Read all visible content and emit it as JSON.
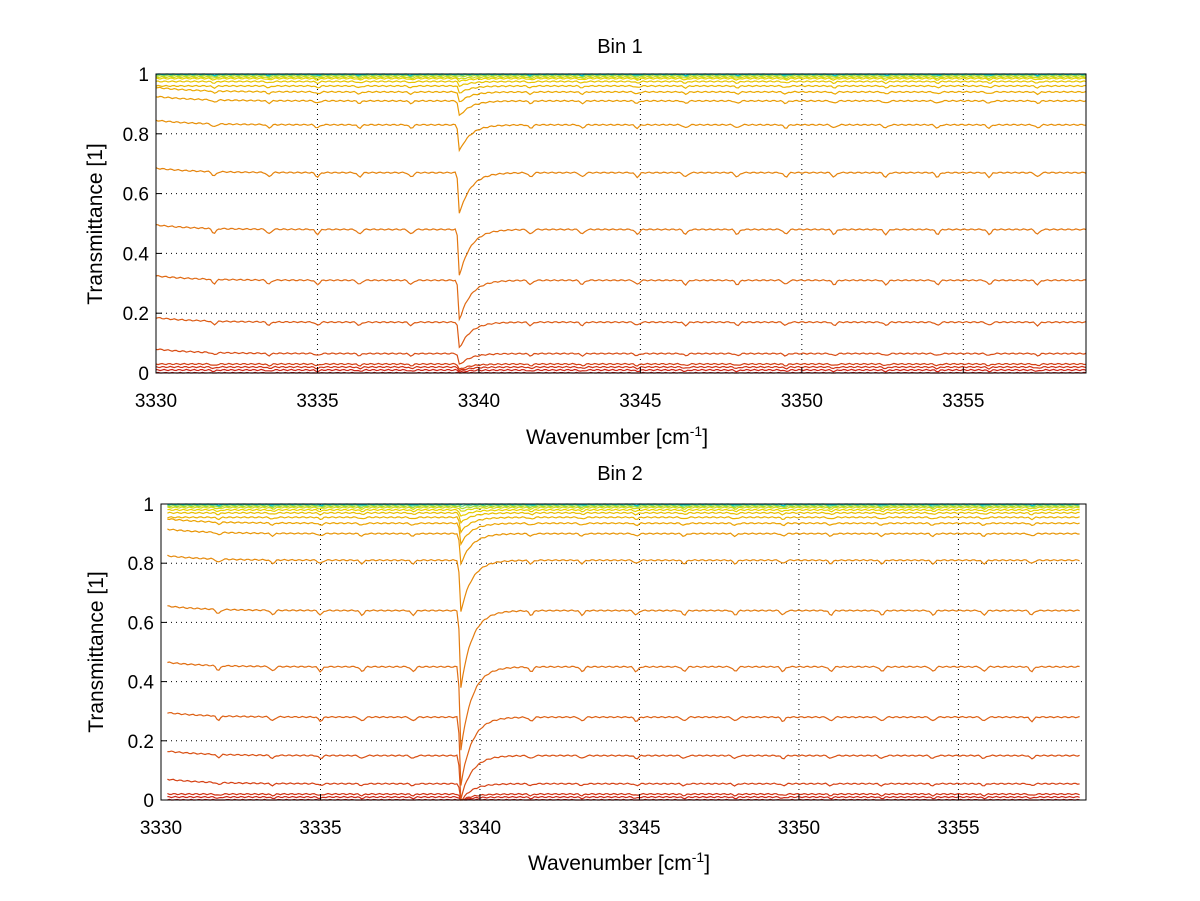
{
  "chart_data": [
    {
      "type": "line",
      "title": "Bin 1",
      "xlabel": "Wavenumber [cm",
      "xlabel_sup": "-1",
      "xlabel_tail": "]",
      "ylabel": "Transmittance [1]",
      "xlim": [
        3330,
        3358.8
      ],
      "ylim": [
        0,
        1
      ],
      "xticks": [
        "3330",
        "3335",
        "3340",
        "3345",
        "3350",
        "3355"
      ],
      "yticks": [
        "0",
        "0.2",
        "0.4",
        "0.6",
        "0.8",
        "1"
      ],
      "grid": true,
      "x_range": [
        3330,
        3358.8
      ],
      "series_baselines": [
        0.0,
        0.01,
        0.02,
        0.03,
        0.065,
        0.17,
        0.31,
        0.48,
        0.67,
        0.83,
        0.91,
        0.94,
        0.96,
        0.975,
        0.985,
        0.99,
        0.995,
        0.998,
        1.0
      ],
      "main_dip": {
        "x": 3339.4,
        "depth_at_0_8": 0.12
      },
      "colormap": "jet (red low to cyan high)"
    },
    {
      "type": "line",
      "title": "Bin 2",
      "xlabel": "Wavenumber [cm",
      "xlabel_sup": "-1",
      "xlabel_tail": "]",
      "ylabel": "Transmittance [1]",
      "xlim": [
        3330,
        3359
      ],
      "ylim": [
        0,
        1
      ],
      "xticks": [
        "3330",
        "3335",
        "3340",
        "3345",
        "3350",
        "3355"
      ],
      "yticks": [
        "0",
        "0.2",
        "0.4",
        "0.6",
        "0.8",
        "1"
      ],
      "grid": true,
      "x_range": [
        3330.2,
        3358.8
      ],
      "series_baselines": [
        0.0,
        0.01,
        0.02,
        0.055,
        0.15,
        0.28,
        0.45,
        0.64,
        0.81,
        0.9,
        0.935,
        0.955,
        0.97,
        0.98,
        0.988,
        0.993,
        0.997,
        1.0
      ],
      "main_dip": {
        "x": 3339.4,
        "depth_at_0_8": 0.22
      },
      "colormap": "jet (red low to cyan high)"
    }
  ]
}
